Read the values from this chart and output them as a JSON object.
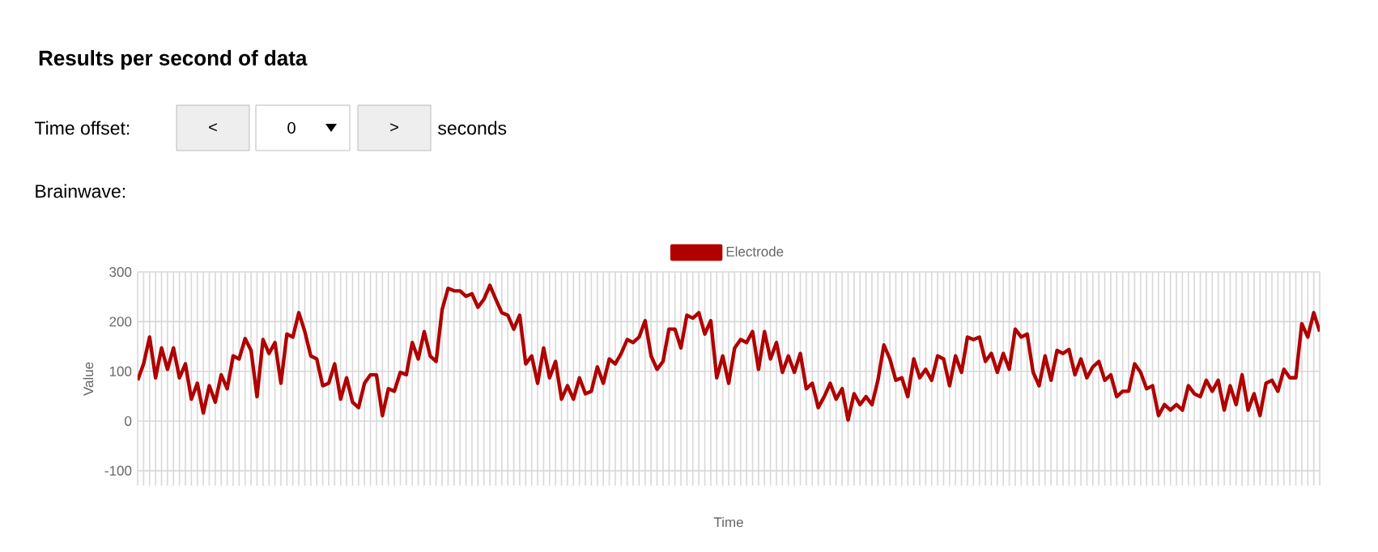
{
  "chart_data": {
    "type": "line",
    "title": "Results per second of data",
    "annotations": [
      "Time offset:",
      "<",
      "0",
      ">",
      "seconds",
      "Brainwave:"
    ],
    "xlabel": "Time",
    "ylabel": "Value",
    "categories": [
      null,
      null,
      null,
      null,
      null,
      null,
      null,
      null,
      null,
      null,
      null,
      null,
      null,
      null,
      null,
      null,
      null,
      null,
      null,
      null,
      null,
      null,
      null,
      null,
      null,
      null,
      null,
      null,
      null,
      null,
      null,
      null,
      null,
      null,
      null,
      null,
      null,
      null,
      null,
      null,
      null,
      null,
      null,
      null,
      null,
      null,
      null,
      null,
      null,
      null,
      null,
      null,
      null,
      null,
      null,
      null,
      null,
      null,
      null,
      null,
      null,
      null,
      null,
      null,
      null,
      null,
      null,
      null,
      null,
      null,
      null,
      null,
      null,
      null,
      null,
      null,
      null,
      null,
      null,
      null,
      null,
      null,
      null,
      null,
      null,
      null,
      null,
      null,
      null,
      null,
      null,
      null,
      null,
      null,
      null,
      null,
      null,
      null,
      null,
      null,
      null,
      null,
      null,
      null,
      null,
      null,
      null,
      null,
      null,
      null,
      null,
      null,
      null,
      null,
      null,
      null,
      null,
      null,
      null,
      null,
      null,
      null,
      null,
      null,
      null,
      null,
      null,
      null,
      null,
      null,
      null,
      null,
      null,
      null,
      null,
      null,
      null,
      null,
      null,
      null,
      null,
      null,
      null,
      null,
      null,
      null,
      null,
      null,
      null,
      null,
      null,
      null,
      null,
      null,
      null,
      null,
      null,
      null,
      null,
      null,
      null,
      null,
      null,
      null,
      null,
      null,
      null,
      null,
      null,
      null,
      null,
      null,
      null,
      null,
      null,
      null,
      null,
      null,
      null,
      null,
      null,
      null,
      null,
      null,
      null,
      null,
      null,
      null,
      null,
      null,
      null,
      null,
      null,
      null,
      null,
      null,
      null,
      null,
      null
    ],
    "series": [
      {
        "name": "Electrode",
        "color": "#b00000",
        "values": [
          82,
          115,
          169,
          87,
          147,
          104,
          147,
          87,
          115,
          44,
          76,
          16,
          71,
          38,
          93,
          65,
          131,
          125,
          166,
          142,
          49,
          164,
          136,
          158,
          76,
          175,
          169,
          218,
          180,
          131,
          125,
          71,
          76,
          115,
          44,
          87,
          38,
          27,
          76,
          93,
          93,
          11,
          65,
          60,
          98,
          93,
          158,
          125,
          180,
          131,
          120,
          224,
          267,
          262,
          262,
          251,
          256,
          229,
          245,
          273,
          245,
          218,
          213,
          185,
          213,
          115,
          131,
          76,
          147,
          87,
          120,
          44,
          71,
          44,
          87,
          55,
          60,
          109,
          76,
          125,
          115,
          136,
          164,
          158,
          169,
          202,
          131,
          104,
          120,
          185,
          185,
          147,
          213,
          207,
          218,
          175,
          202,
          87,
          131,
          76,
          147,
          164,
          158,
          180,
          104,
          180,
          125,
          158,
          98,
          131,
          98,
          136,
          65,
          76,
          27,
          49,
          76,
          44,
          65,
          2,
          55,
          33,
          49,
          33,
          82,
          153,
          125,
          82,
          87,
          49,
          125,
          87,
          104,
          82,
          131,
          125,
          71,
          131,
          98,
          169,
          164,
          169,
          120,
          136,
          98,
          136,
          104,
          185,
          169,
          175,
          98,
          71,
          131,
          82,
          142,
          136,
          144,
          93,
          125,
          87,
          109,
          120,
          82,
          93,
          49,
          60,
          60,
          115,
          98,
          65,
          71,
          11,
          33,
          22,
          33,
          22,
          71,
          55,
          49,
          82,
          60,
          82,
          22,
          71,
          33,
          93,
          22,
          55,
          11,
          76,
          82,
          60,
          104,
          87,
          87,
          196,
          169,
          218,
          180
        ]
      }
    ],
    "ylim": [
      -130,
      300
    ],
    "yticks": [
      -100,
      0,
      100,
      200,
      300
    ],
    "tick_labels": "y",
    "grid": true,
    "legend": "top",
    "marker": "none",
    "line_style": "solid"
  }
}
